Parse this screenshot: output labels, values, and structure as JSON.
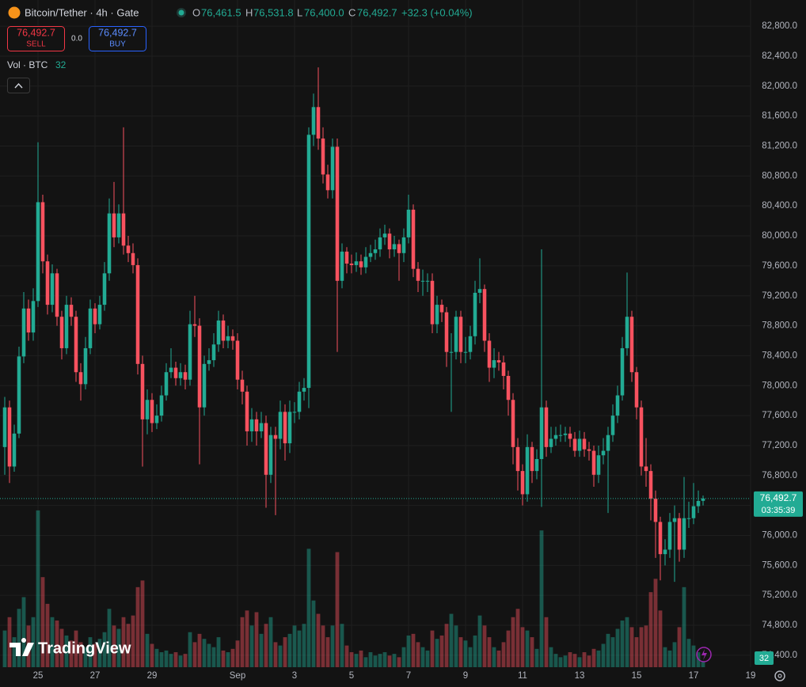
{
  "chart_data": {
    "type": "candlestick",
    "title": "Bitcoin/Tether · 4h · Gate",
    "legend": {
      "o_label": "O",
      "open": "76,461.5",
      "h_label": "H",
      "high": "76,531.8",
      "l_label": "L",
      "low": "76,400.0",
      "c_label": "C",
      "close": "76,492.7",
      "change": "+32.3 (+0.04%)"
    },
    "trade": {
      "sell_price": "76,492.7",
      "sell_label": "SELL",
      "spread": "0.0",
      "buy_price": "76,492.7",
      "buy_label": "BUY"
    },
    "volume_legend": {
      "label": "Vol · BTC",
      "value": "32"
    },
    "up_color": "#22ab94",
    "down_color": "#f7525f",
    "grid": true,
    "xlim": [
      -1,
      157
    ],
    "xticks": [
      {
        "value": 7,
        "label": "25"
      },
      {
        "value": 19,
        "label": "27"
      },
      {
        "value": 31,
        "label": "29"
      },
      {
        "value": 49,
        "label": "Sep"
      },
      {
        "value": 61,
        "label": "3"
      },
      {
        "value": 73,
        "label": "5"
      },
      {
        "value": 85,
        "label": "7"
      },
      {
        "value": 97,
        "label": "9"
      },
      {
        "value": 109,
        "label": "11"
      },
      {
        "value": 121,
        "label": "13"
      },
      {
        "value": 133,
        "label": "15"
      },
      {
        "value": 145,
        "label": "17"
      },
      {
        "value": 157,
        "label": "19"
      }
    ],
    "ylim": [
      74240,
      83150
    ],
    "yticks": [
      {
        "value": 74400,
        "label": "74,400.0"
      },
      {
        "value": 74800,
        "label": "74,800.0"
      },
      {
        "value": 75200,
        "label": "75,200.0"
      },
      {
        "value": 75600,
        "label": "75,600.0"
      },
      {
        "value": 76000,
        "label": "76,000.0"
      },
      {
        "value": 76400,
        "label": "76,400.0"
      },
      {
        "value": 76800,
        "label": "76,800.0"
      },
      {
        "value": 77200,
        "label": "77,200.0"
      },
      {
        "value": 77600,
        "label": "77,600.0"
      },
      {
        "value": 78000,
        "label": "78,000.0"
      },
      {
        "value": 78400,
        "label": "78,400.0"
      },
      {
        "value": 78800,
        "label": "78,800.0"
      },
      {
        "value": 79200,
        "label": "79,200.0"
      },
      {
        "value": 79600,
        "label": "79,600.0"
      },
      {
        "value": 80000,
        "label": "80,000.0"
      },
      {
        "value": 80400,
        "label": "80,400.0"
      },
      {
        "value": 80800,
        "label": "80,800.0"
      },
      {
        "value": 81200,
        "label": "81,200.0"
      },
      {
        "value": 81600,
        "label": "81,600.0"
      },
      {
        "value": 82000,
        "label": "82,000.0"
      },
      {
        "value": 82400,
        "label": "82,400.0"
      },
      {
        "value": 82800,
        "label": "82,800.0"
      }
    ],
    "volume_ylim": [
      0,
      4000
    ],
    "last_price_label": "76,492.7",
    "countdown": "03:35:39",
    "last_volume_label": "32",
    "open": [
      77180,
      77710,
      76920,
      77360,
      78390,
      79030,
      78710,
      79130,
      80450,
      79660,
      79080,
      79500,
      78920,
      78500,
      79080,
      78920,
      78180,
      78020,
      78500,
      79030,
      78820,
      79080,
      79500,
      80300,
      79980,
      80300,
      79870,
      79770,
      79610,
      78290,
      77550,
      77810,
      77500,
      77600,
      77870,
      78180,
      78240,
      78100,
      78180,
      78080,
      78820,
      78800,
      77710,
      78290,
      78340,
      78550,
      78870,
      78600,
      78660,
      78600,
      78080,
      77920,
      77390,
      77550,
      77390,
      77500,
      76810,
      77340,
      77290,
      77650,
      77230,
      77650,
      77650,
      77920,
      77970,
      81350,
      81720,
      81300,
      80820,
      80610,
      81190,
      79400,
      79790,
      79630,
      79610,
      79660,
      79580,
      79720,
      79770,
      79820,
      79980,
      80030,
      79820,
      79890,
      79770,
      79980,
      80350,
      79560,
      79400,
      79400,
      79400,
      78820,
      79080,
      78980,
      78450,
      78450,
      78920,
      78450,
      78450,
      78660,
      79240,
      79290,
      78600,
      78240,
      78340,
      78310,
      78130,
      77810,
      77180,
      76860,
      76550,
      77180,
      76860,
      77020,
      77710,
      77180,
      77290,
      77340,
      77340,
      77360,
      77290,
      77130,
      77290,
      77150,
      77130,
      76810,
      77070,
      77130,
      77340,
      77600,
      77870,
      78500,
      78920,
      78180,
      77710,
      76920,
      76860,
      76490,
      76180,
      75750,
      75810,
      76180,
      76230,
      75810,
      76230,
      76230,
      76390,
      76461.5
    ],
    "high": [
      77850,
      77800,
      77480,
      78520,
      79250,
      79150,
      79300,
      81250,
      80550,
      79750,
      79620,
      79560,
      79000,
      79200,
      79180,
      79000,
      78300,
      78650,
      79150,
      79100,
      79200,
      79650,
      80500,
      80720,
      80420,
      81450,
      80000,
      79900,
      79700,
      78400,
      77950,
      77900,
      77750,
      78000,
      78300,
      78500,
      78320,
      78300,
      78280,
      79000,
      79200,
      78900,
      78400,
      78500,
      78700,
      79000,
      78950,
      78800,
      78750,
      78700,
      78200,
      78000,
      77700,
      77650,
      77650,
      77600,
      77450,
      77450,
      77800,
      77750,
      77800,
      77780,
      78050,
      78100,
      81450,
      81900,
      82250,
      81450,
      80950,
      81300,
      81300,
      79900,
      79850,
      79750,
      79780,
      79750,
      79850,
      79880,
      79950,
      80100,
      80150,
      80100,
      80000,
      79950,
      80100,
      80550,
      80420,
      79650,
      79550,
      79500,
      79500,
      79200,
      79150,
      79050,
      78700,
      79000,
      79000,
      78650,
      78800,
      79400,
      79700,
      79350,
      78700,
      78500,
      78450,
      78400,
      78200,
      77900,
      77300,
      76950,
      77350,
      77250,
      77150,
      79820,
      77800,
      77450,
      77450,
      77480,
      77450,
      77450,
      77380,
      77400,
      77380,
      77250,
      77200,
      77200,
      77300,
      77450,
      77750,
      78000,
      78650,
      79510,
      79000,
      78250,
      77800,
      77300,
      76950,
      76600,
      76250,
      75950,
      76300,
      76400,
      76300,
      76780,
      76450,
      76700,
      76600,
      76531.8
    ],
    "low": [
      76810,
      76700,
      76850,
      77300,
      78300,
      78600,
      78600,
      79050,
      79500,
      78950,
      78980,
      78800,
      78350,
      78420,
      78800,
      78050,
      77800,
      77950,
      78420,
      78700,
      78750,
      79000,
      79400,
      79850,
      79900,
      79750,
      79650,
      79500,
      78150,
      76920,
      77350,
      77380,
      77420,
      77520,
      77800,
      78100,
      78000,
      78000,
      77950,
      78000,
      78650,
      76950,
      77600,
      78200,
      78250,
      78450,
      78500,
      78500,
      78480,
      77950,
      77750,
      77200,
      77250,
      77200,
      77300,
      76370,
      76700,
      76270,
      77150,
      77000,
      77100,
      77500,
      77550,
      77800,
      77700,
      81200,
      81150,
      80700,
      80500,
      80500,
      78450,
      79300,
      79500,
      79500,
      79520,
      79480,
      79500,
      79650,
      79680,
      79720,
      79880,
      79700,
      79720,
      79400,
      79650,
      79900,
      79450,
      79250,
      79200,
      79250,
      78700,
      78700,
      78850,
      78250,
      77650,
      78350,
      78300,
      78300,
      78350,
      78550,
      79100,
      78450,
      78050,
      78100,
      78200,
      77950,
      77600,
      76950,
      76600,
      76400,
      76450,
      76700,
      76750,
      76380,
      77050,
      77100,
      77200,
      77250,
      77250,
      77180,
      77050,
      77050,
      77050,
      77000,
      76650,
      76700,
      76950,
      76300,
      77250,
      77500,
      77800,
      78400,
      78050,
      77550,
      76800,
      76650,
      76200,
      75700,
      75400,
      75600,
      75700,
      75380,
      75650,
      75700,
      76100,
      76150,
      76300,
      76400
    ],
    "close": [
      77710,
      76920,
      77360,
      78390,
      79030,
      78710,
      79130,
      80450,
      79660,
      79080,
      79500,
      78920,
      78500,
      79080,
      78920,
      78180,
      78020,
      78500,
      79030,
      78820,
      79080,
      79500,
      80300,
      79980,
      80300,
      79870,
      79770,
      79610,
      78290,
      77550,
      77810,
      77500,
      77600,
      77870,
      78180,
      78240,
      78100,
      78180,
      78080,
      78820,
      78800,
      77710,
      78290,
      78340,
      78550,
      78870,
      78600,
      78660,
      78600,
      78080,
      77920,
      77390,
      77550,
      77390,
      77500,
      76810,
      77340,
      77290,
      77650,
      77230,
      77650,
      77650,
      77920,
      77970,
      81350,
      81720,
      81300,
      80820,
      80610,
      81190,
      79400,
      79790,
      79630,
      79610,
      79660,
      79580,
      79720,
      79770,
      79820,
      79980,
      80030,
      79820,
      79890,
      79770,
      79980,
      80350,
      79560,
      79400,
      79400,
      79400,
      78820,
      79080,
      78980,
      78450,
      78450,
      78920,
      78450,
      78450,
      78660,
      79240,
      79290,
      78600,
      78240,
      78340,
      78310,
      78130,
      77810,
      77180,
      76860,
      76550,
      77180,
      76860,
      77020,
      77710,
      77180,
      77290,
      77340,
      77340,
      77360,
      77290,
      77130,
      77290,
      77150,
      77130,
      76810,
      77070,
      77130,
      77340,
      77600,
      77870,
      78500,
      78920,
      78180,
      77710,
      76920,
      76860,
      76490,
      76180,
      75750,
      75810,
      76180,
      76230,
      75810,
      76230,
      76230,
      76390,
      76460,
      76492.7
    ],
    "volume": [
      220,
      300,
      180,
      350,
      420,
      250,
      300,
      940,
      540,
      380,
      300,
      280,
      230,
      190,
      160,
      220,
      150,
      120,
      180,
      140,
      170,
      210,
      350,
      250,
      230,
      300,
      260,
      310,
      480,
      520,
      200,
      140,
      110,
      90,
      100,
      80,
      90,
      70,
      80,
      210,
      150,
      200,
      170,
      140,
      120,
      180,
      100,
      90,
      110,
      160,
      300,
      340,
      250,
      330,
      200,
      260,
      300,
      150,
      130,
      180,
      200,
      250,
      220,
      260,
      710,
      400,
      320,
      250,
      180,
      250,
      690,
      260,
      130,
      90,
      80,
      100,
      60,
      90,
      70,
      80,
      90,
      70,
      80,
      60,
      120,
      190,
      200,
      150,
      120,
      100,
      220,
      170,
      190,
      260,
      320,
      250,
      180,
      160,
      120,
      190,
      310,
      250,
      180,
      120,
      100,
      150,
      220,
      300,
      350,
      240,
      220,
      180,
      110,
      820,
      300,
      120,
      80,
      60,
      70,
      90,
      80,
      60,
      90,
      70,
      110,
      100,
      140,
      200,
      180,
      230,
      280,
      300,
      240,
      180,
      240,
      250,
      450,
      530,
      340,
      120,
      100,
      150,
      240,
      480,
      170,
      130,
      90,
      32
    ]
  },
  "branding": "TradingView"
}
